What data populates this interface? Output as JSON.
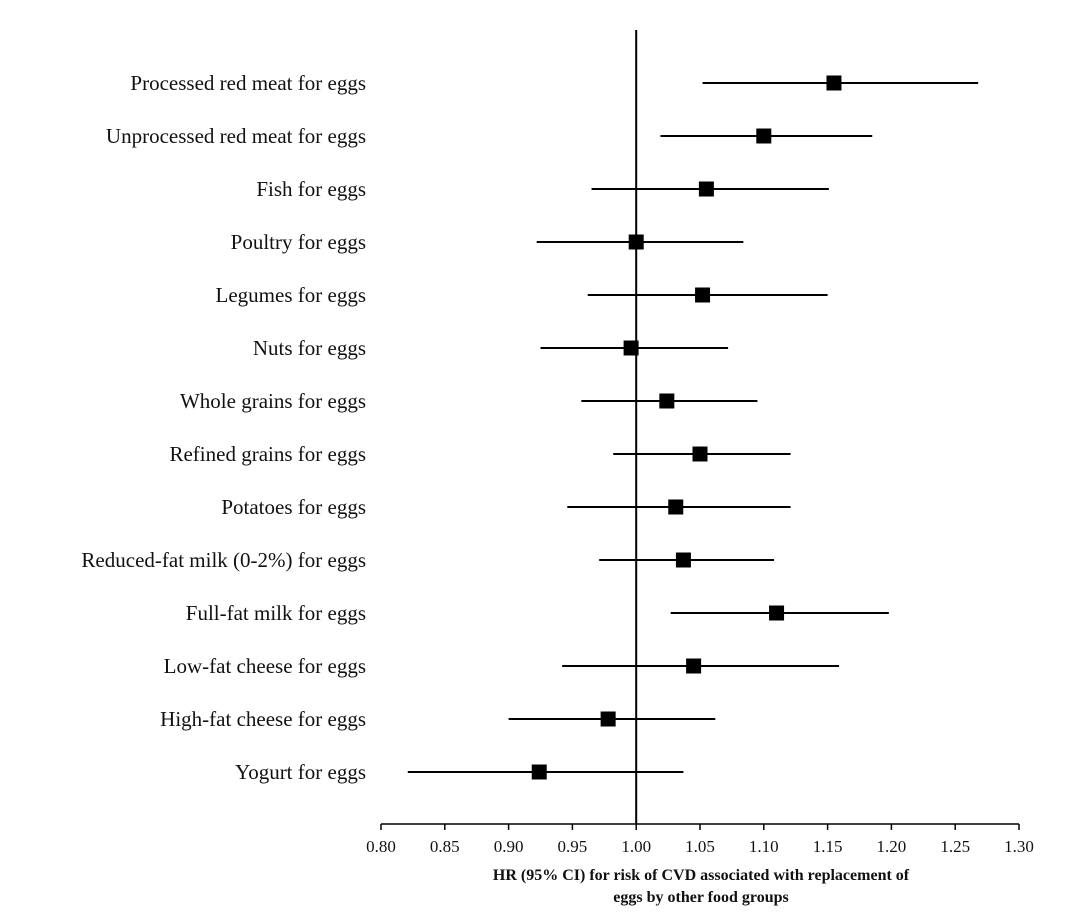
{
  "chart_data": {
    "type": "scatter",
    "subtype": "forest-plot",
    "categories": [
      "Processed red meat for eggs",
      "Unprocessed red meat for eggs",
      "Fish for eggs",
      "Poultry for eggs",
      "Legumes for eggs",
      "Nuts for eggs",
      "Whole grains for eggs",
      "Refined grains for eggs",
      "Potatoes for eggs",
      "Reduced-fat milk (0-2%) for eggs",
      "Full-fat milk for eggs",
      "Low-fat cheese for eggs",
      "High-fat cheese for eggs",
      "Yogurt for eggs"
    ],
    "hr": [
      1.155,
      1.1,
      1.055,
      1.0,
      1.052,
      0.996,
      1.024,
      1.05,
      1.031,
      1.037,
      1.11,
      1.045,
      0.978,
      0.924
    ],
    "lower": [
      1.052,
      1.019,
      0.965,
      0.922,
      0.962,
      0.925,
      0.957,
      0.982,
      0.946,
      0.971,
      1.027,
      0.942,
      0.9,
      0.821
    ],
    "upper": [
      1.268,
      1.185,
      1.151,
      1.084,
      1.15,
      1.072,
      1.095,
      1.121,
      1.121,
      1.108,
      1.198,
      1.159,
      1.062,
      1.037
    ],
    "xlim": [
      0.8,
      1.3
    ],
    "xticks": [
      "0.80",
      "0.85",
      "0.90",
      "0.95",
      "1.00",
      "1.05",
      "1.10",
      "1.15",
      "1.20",
      "1.25",
      "1.30"
    ],
    "reference_line": 1.0,
    "xlabel_line1": "HR (95% CI) for risk of CVD associated with replacement of",
    "xlabel_line2": "eggs by other food groups",
    "grid": false,
    "marker": "square",
    "color": "#000000"
  }
}
